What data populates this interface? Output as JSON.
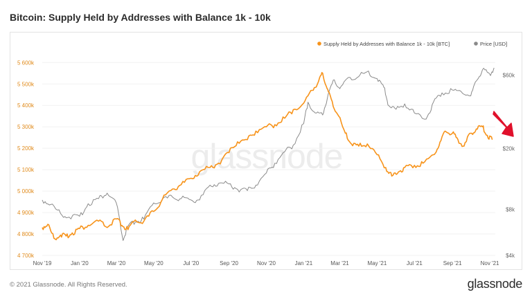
{
  "title": "Bitcoin: Supply Held by Addresses with Balance 1k - 10k",
  "footer": {
    "copyright": "© 2021 Glassnode. All Rights Reserved.",
    "logo": "glassnode"
  },
  "watermark": "glassnode",
  "colors": {
    "supply": "#f7931a",
    "price": "#8a8a8a",
    "arrow": "#e0102b",
    "left_tick": "#e08a1a",
    "right_tick": "#666666"
  },
  "chart_data": {
    "type": "line",
    "legend": [
      {
        "name": "Supply Held by Addresses with Balance 1k - 10k [BTC]",
        "color": "#f7931a"
      },
      {
        "name": "Price [USD]",
        "color": "#8a8a8a"
      }
    ],
    "legend_position": "top-right",
    "x_ticks": [
      "Nov '19",
      "Jan '20",
      "Mar '20",
      "May '20",
      "Jul '20",
      "Sep '20",
      "Nov '20",
      "Jan '21",
      "Mar '21",
      "May '21",
      "Jul '21",
      "Sep '21",
      "Nov '21"
    ],
    "y_left": {
      "ticks": [
        "4 700k",
        "4 800k",
        "4 900k",
        "5 000k",
        "5 100k",
        "5 200k",
        "5 300k",
        "5 400k",
        "5 500k",
        "5 600k"
      ],
      "ylim": [
        4700000,
        5630000
      ]
    },
    "y_right": {
      "ticks": [
        "$4k",
        "$8k",
        "$20k",
        "$60k"
      ],
      "scale": "log",
      "ylim": [
        4000,
        80000
      ]
    },
    "series": [
      {
        "name": "Supply Held by Addresses with Balance 1k - 10k [BTC]",
        "axis": "left",
        "x": [
          "2019-11-01",
          "2019-11-10",
          "2019-11-20",
          "2019-12-01",
          "2019-12-10",
          "2019-12-20",
          "2020-01-01",
          "2020-01-15",
          "2020-02-01",
          "2020-02-15",
          "2020-03-01",
          "2020-03-10",
          "2020-03-20",
          "2020-04-01",
          "2020-04-15",
          "2020-05-01",
          "2020-05-15",
          "2020-06-01",
          "2020-06-15",
          "2020-07-01",
          "2020-07-15",
          "2020-08-01",
          "2020-08-15",
          "2020-09-01",
          "2020-09-15",
          "2020-10-01",
          "2020-10-15",
          "2020-11-01",
          "2020-11-15",
          "2020-12-01",
          "2020-12-15",
          "2021-01-01",
          "2021-01-15",
          "2021-01-25",
          "2021-02-01",
          "2021-02-08",
          "2021-02-15",
          "2021-02-25",
          "2021-03-10",
          "2021-03-20",
          "2021-04-01",
          "2021-04-15",
          "2021-05-01",
          "2021-05-15",
          "2021-05-25",
          "2021-06-05",
          "2021-06-15",
          "2021-07-01",
          "2021-07-15",
          "2021-08-01",
          "2021-08-10",
          "2021-08-20",
          "2021-09-01",
          "2021-09-10",
          "2021-09-20",
          "2021-10-01",
          "2021-10-10",
          "2021-10-20",
          "2021-10-28",
          "2021-11-05"
        ],
        "y": [
          4830000,
          4845000,
          4780000,
          4795000,
          4790000,
          4805000,
          4825000,
          4840000,
          4860000,
          4830000,
          4870000,
          4840000,
          4820000,
          4865000,
          4860000,
          4905000,
          4960000,
          5010000,
          5030000,
          5060000,
          5090000,
          5110000,
          5130000,
          5180000,
          5230000,
          5240000,
          5280000,
          5300000,
          5310000,
          5340000,
          5380000,
          5410000,
          5470000,
          5510000,
          5550000,
          5480000,
          5430000,
          5360000,
          5270000,
          5220000,
          5210000,
          5220000,
          5170000,
          5110000,
          5070000,
          5090000,
          5110000,
          5120000,
          5130000,
          5170000,
          5210000,
          5280000,
          5270000,
          5240000,
          5210000,
          5270000,
          5290000,
          5300000,
          5260000,
          5240000
        ]
      },
      {
        "name": "Price [USD]",
        "axis": "right",
        "x": [
          "2019-11-01",
          "2019-11-15",
          "2019-12-01",
          "2019-12-15",
          "2020-01-01",
          "2020-01-15",
          "2020-02-01",
          "2020-02-15",
          "2020-03-01",
          "2020-03-12",
          "2020-03-20",
          "2020-04-01",
          "2020-04-15",
          "2020-05-01",
          "2020-05-15",
          "2020-06-01",
          "2020-06-15",
          "2020-07-01",
          "2020-07-15",
          "2020-08-01",
          "2020-08-15",
          "2020-09-01",
          "2020-09-15",
          "2020-10-01",
          "2020-10-15",
          "2020-11-01",
          "2020-11-15",
          "2020-12-01",
          "2020-12-15",
          "2021-01-01",
          "2021-01-08",
          "2021-01-20",
          "2021-02-01",
          "2021-02-10",
          "2021-02-20",
          "2021-03-01",
          "2021-03-15",
          "2021-04-01",
          "2021-04-14",
          "2021-05-01",
          "2021-05-12",
          "2021-05-20",
          "2021-06-01",
          "2021-06-15",
          "2021-07-01",
          "2021-07-20",
          "2021-08-01",
          "2021-08-15",
          "2021-09-01",
          "2021-09-15",
          "2021-10-01",
          "2021-10-10",
          "2021-10-20",
          "2021-11-01",
          "2021-11-08"
        ],
        "y": [
          9200,
          8600,
          7500,
          7100,
          7200,
          8700,
          9400,
          10200,
          8800,
          5000,
          6200,
          6600,
          6900,
          8800,
          9300,
          9600,
          9400,
          9200,
          9200,
          11500,
          11800,
          11700,
          10800,
          10600,
          11500,
          13800,
          16000,
          19000,
          21000,
          29000,
          40000,
          34000,
          33000,
          45000,
          56000,
          49000,
          58000,
          58800,
          63000,
          57000,
          50000,
          38000,
          36000,
          39000,
          34000,
          31000,
          40000,
          46000,
          48000,
          47000,
          44000,
          55000,
          65000,
          61000,
          67000
        ]
      }
    ]
  },
  "annotation": {
    "type": "arrow",
    "color": "#e0102b",
    "points_to": "Supply Held by Addresses with Balance 1k - 10k [BTC]"
  }
}
